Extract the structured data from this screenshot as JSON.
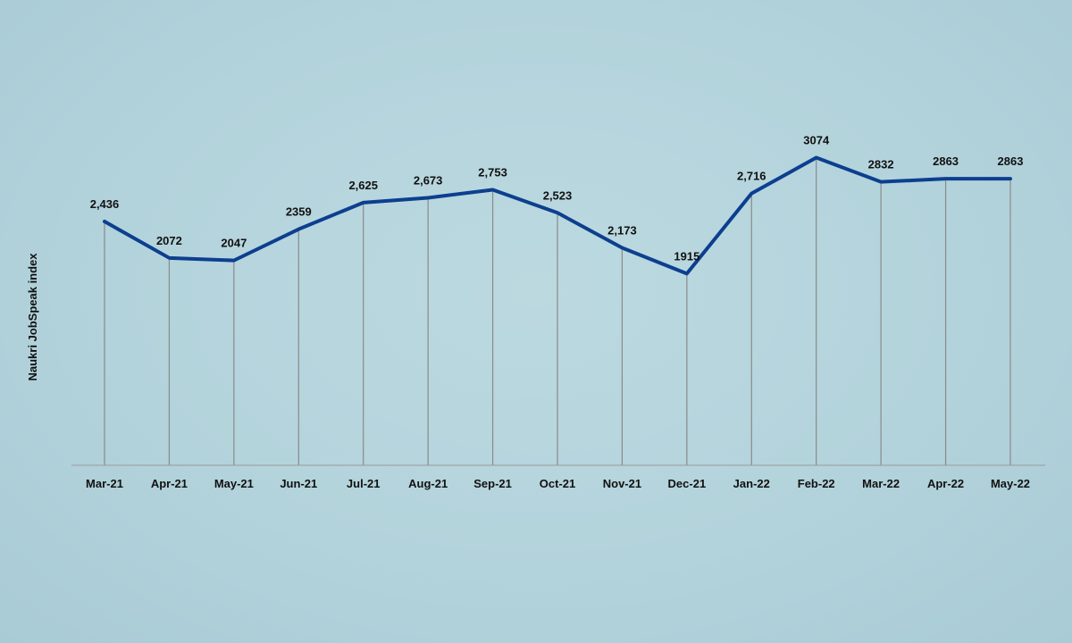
{
  "chart_data": {
    "type": "line",
    "title": "",
    "xlabel": "",
    "ylabel": "Naukri JobSpeak index",
    "categories": [
      "Mar-21",
      "Apr-21",
      "May-21",
      "Jun-21",
      "Jul-21",
      "Aug-21",
      "Sep-21",
      "Oct-21",
      "Nov-21",
      "Dec-21",
      "Jan-22",
      "Feb-22",
      "Mar-22",
      "Apr-22",
      "May-22"
    ],
    "series": [
      {
        "values": [
          2436,
          2072,
          2047,
          2359,
          2625,
          2673,
          2753,
          2523,
          2173,
          1915,
          2716,
          3074,
          2832,
          2863,
          2863
        ]
      }
    ],
    "data_labels": [
      "2,436",
      "2072",
      "2047",
      "2359",
      "2,625",
      "2,673",
      "2,753",
      "2,523",
      "2,173",
      "1915",
      "2,716",
      "3074",
      "2832",
      "2863",
      "2863"
    ],
    "ylim": [
      0,
      3400
    ],
    "grid": false,
    "drop_lines": true,
    "colors": {
      "line": "#0d3f8f",
      "drop_line": "#8a8a8a",
      "axis": "#9a9a9a",
      "background": "#b5d5dd"
    }
  }
}
